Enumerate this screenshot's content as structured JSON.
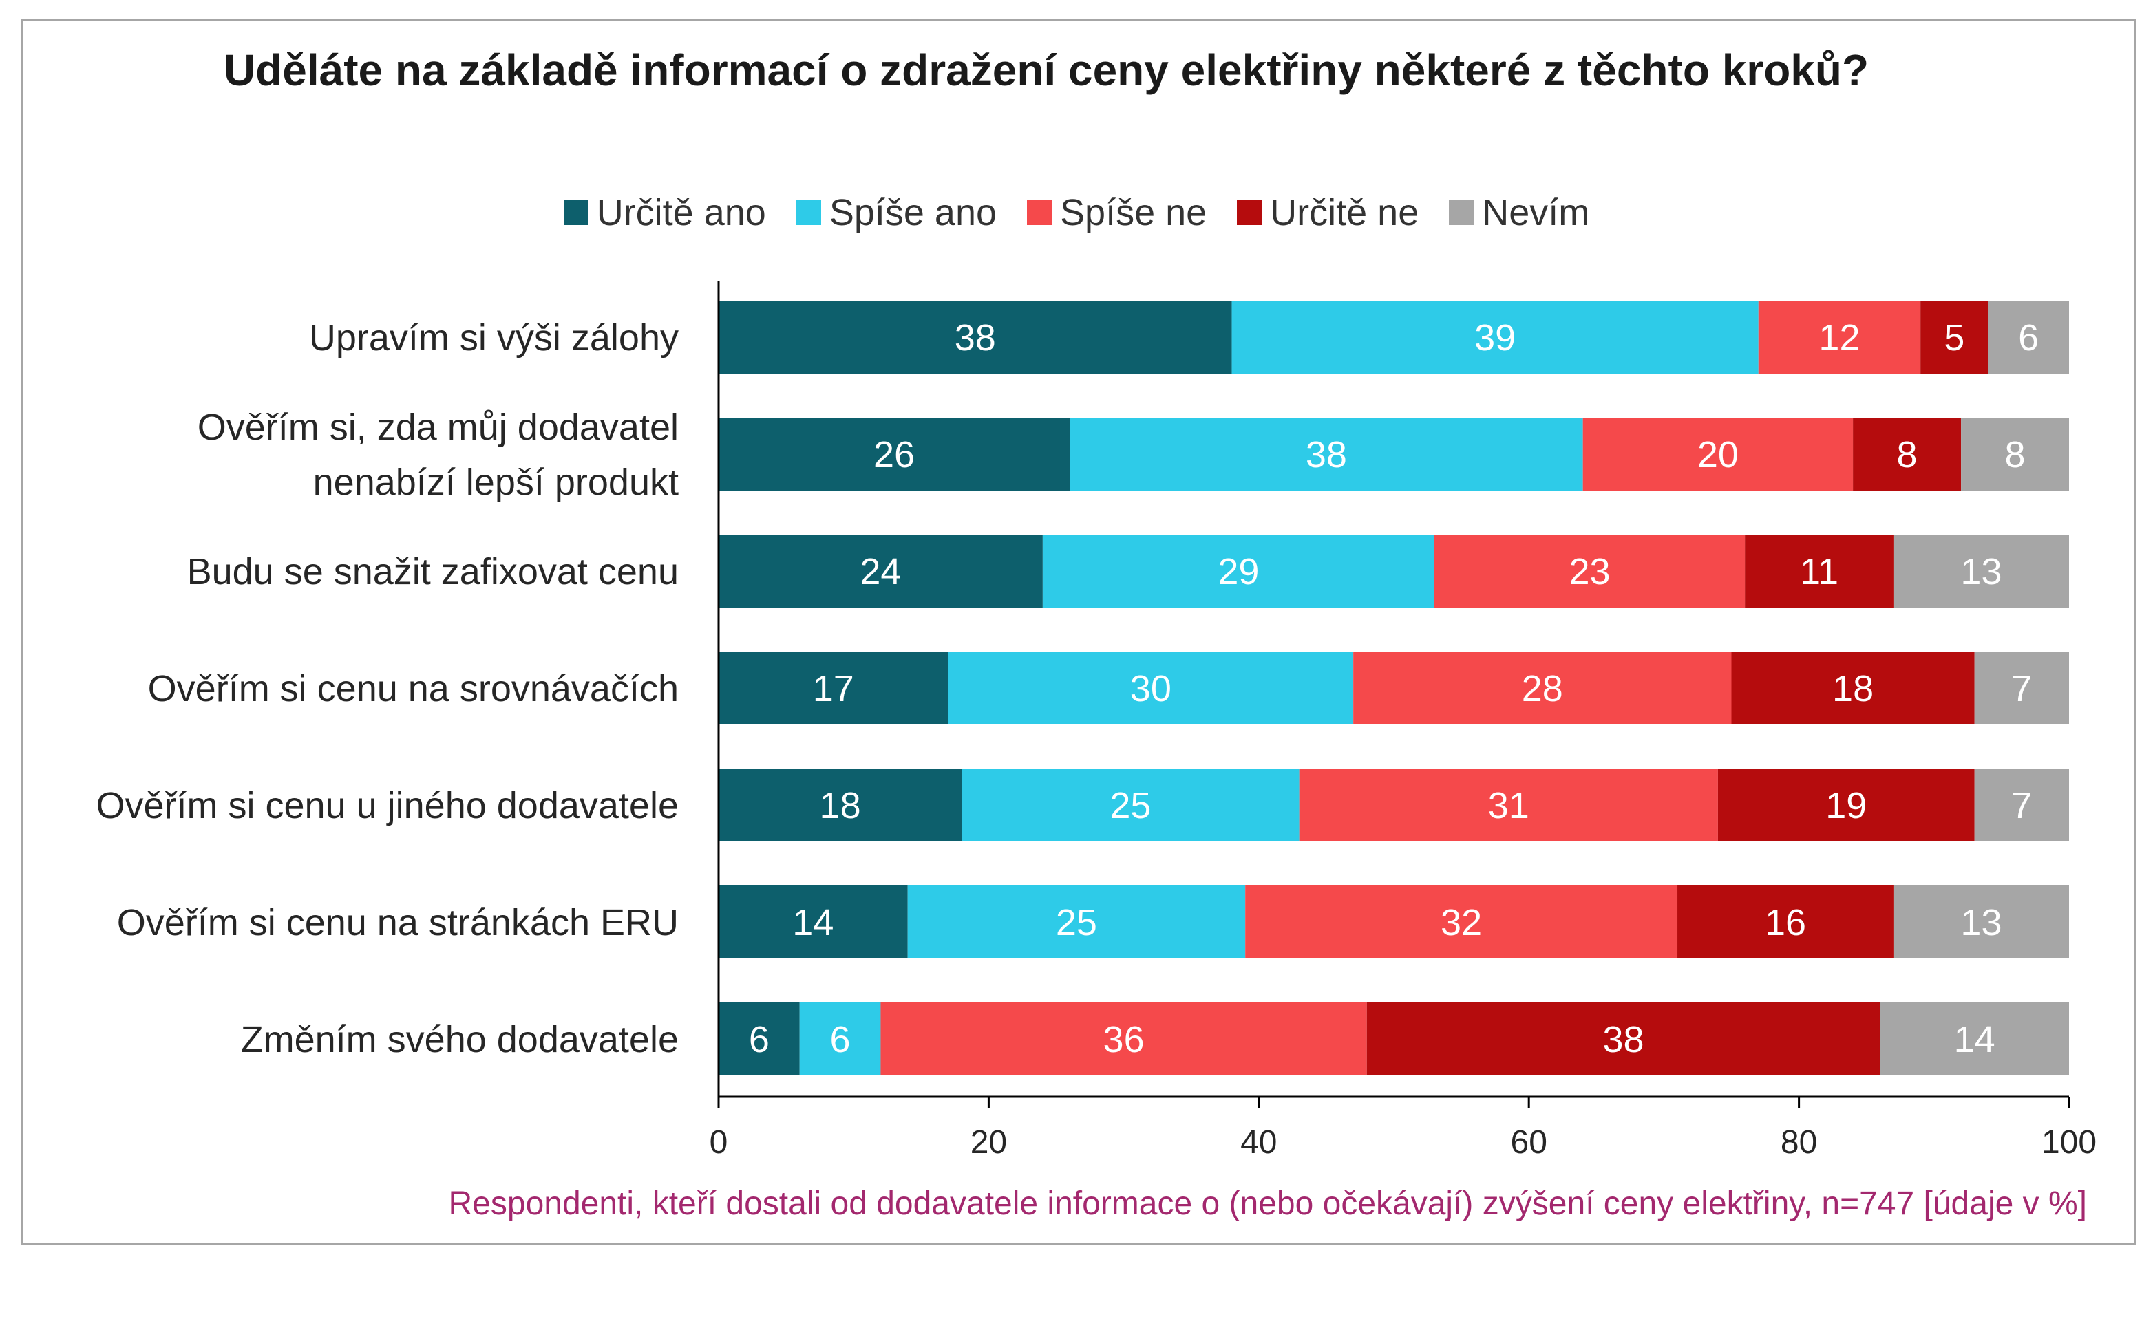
{
  "chart_data": {
    "type": "bar",
    "orientation": "horizontal",
    "stacked": true,
    "title": "Uděláte na základě informací o zdražení ceny elektřiny některé z těchto kroků?",
    "categories": [
      [
        "Upravím si výši zálohy"
      ],
      [
        "Ověřím si, zda můj dodavatel",
        "nenabízí lepší produkt"
      ],
      [
        "Budu se snažit zafixovat cenu"
      ],
      [
        "Ověřím si cenu na srovnávačích"
      ],
      [
        "Ověřím si cenu u jiného dodavatele"
      ],
      [
        "Ověřím si cenu na stránkách ERU"
      ],
      [
        "Změním svého dodavatele"
      ]
    ],
    "series": [
      {
        "name": "Určitě ano",
        "color": "#0d5f6c",
        "values": [
          38,
          26,
          24,
          17,
          18,
          14,
          6
        ]
      },
      {
        "name": "Spíše ano",
        "color": "#2ecbe8",
        "values": [
          39,
          38,
          29,
          30,
          25,
          25,
          6
        ]
      },
      {
        "name": "Spíše ne",
        "color": "#f5494b",
        "values": [
          12,
          20,
          23,
          28,
          31,
          32,
          36
        ]
      },
      {
        "name": "Určitě ne",
        "color": "#b50c0d",
        "values": [
          5,
          8,
          11,
          18,
          19,
          16,
          38
        ]
      },
      {
        "name": "Nevím",
        "color": "#a6a6a6",
        "values": [
          6,
          8,
          13,
          7,
          7,
          13,
          14
        ]
      }
    ],
    "xlim": [
      0,
      100
    ],
    "xticks": [
      0,
      20,
      40,
      60,
      80,
      100
    ],
    "legend_position": "top",
    "grid": false,
    "footnote": "Respondenti, kteří dostali od dodavatele informace o (nebo očekávají) zvýšení ceny elektřiny, n=747 [údaje v %]"
  }
}
